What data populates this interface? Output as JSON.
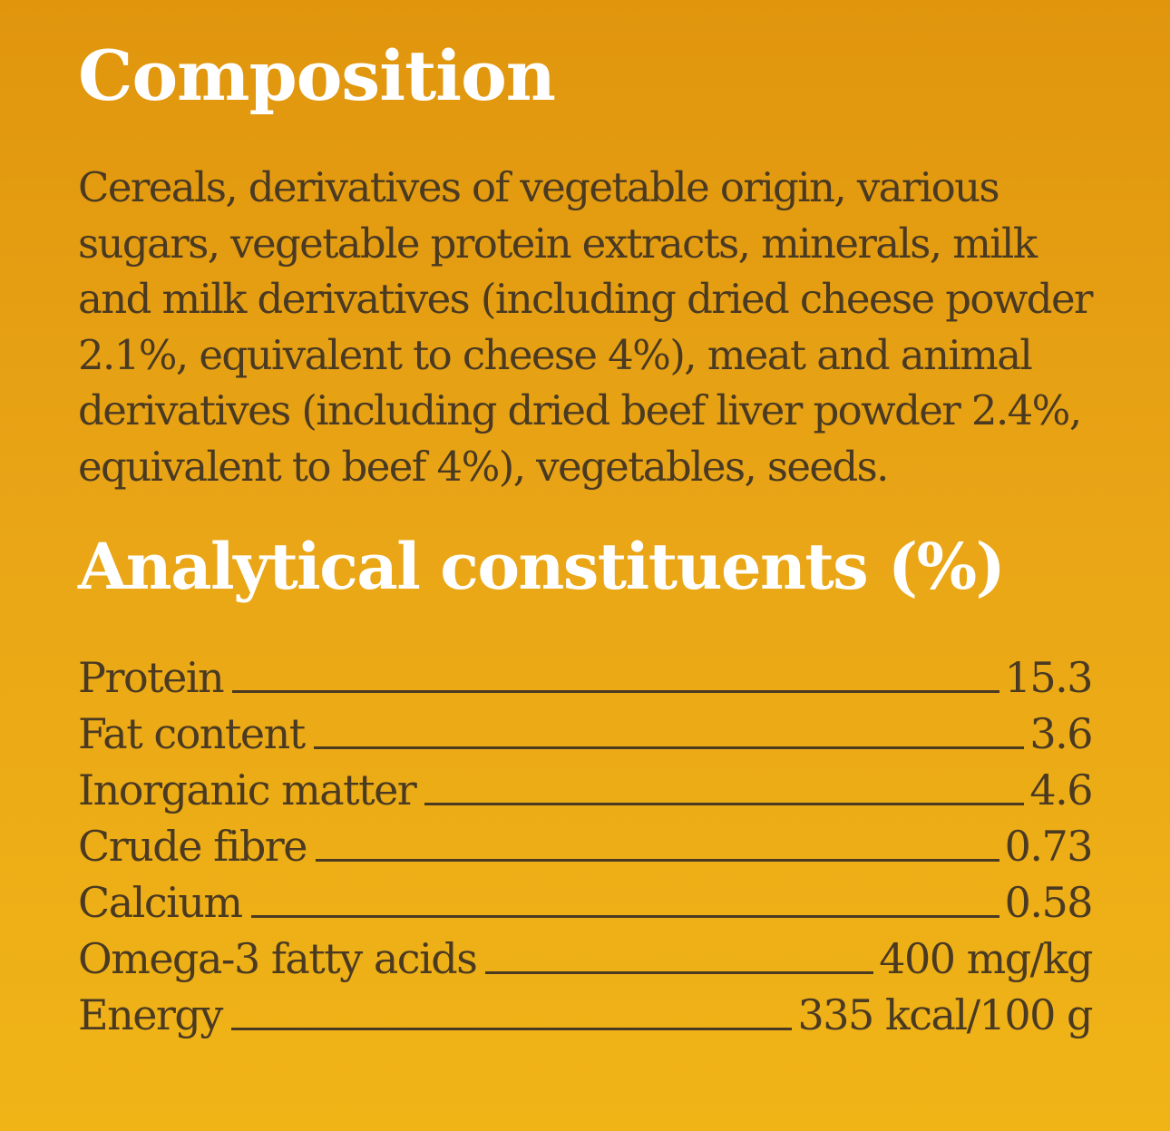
{
  "composition": {
    "title": "Composition",
    "text": "Cereals, derivatives of vegetable origin, various sugars, vegetable protein extracts, minerals, milk and milk derivatives (including dried cheese powder 2.1%, equivalent to cheese 4%), meat and animal derivatives (including dried beef liver powder 2.4%, equivalent to beef 4%), vegetables, seeds."
  },
  "analytical": {
    "title": "Analytical constituents (%)",
    "rows": [
      {
        "label": "Protein",
        "value": "15.3"
      },
      {
        "label": "Fat content",
        "value": "3.6"
      },
      {
        "label": "Inorganic matter",
        "value": "4.6"
      },
      {
        "label": "Crude fibre",
        "value": "0.73"
      },
      {
        "label": "Calcium",
        "value": "0.58"
      },
      {
        "label": "Omega-3 fatty acids",
        "value": "400 mg/kg"
      },
      {
        "label": "Energy",
        "value": "335 kcal/100 g"
      }
    ]
  },
  "colors": {
    "background_top": "#e0950d",
    "background_bottom": "#f0b417",
    "heading": "#ffffff",
    "body_text": "#4a3a22"
  }
}
